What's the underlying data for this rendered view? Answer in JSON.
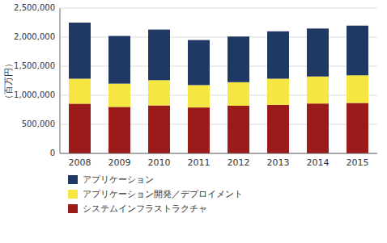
{
  "chart_data": {
    "type": "bar",
    "stacked": true,
    "y_label": "（百万円）",
    "categories": [
      "2008",
      "2009",
      "2010",
      "2011",
      "2012",
      "2013",
      "2014",
      "2015"
    ],
    "series": [
      {
        "name": "システムインフラストラクチャ",
        "color": "#9B1B1B",
        "values": [
          855000,
          800000,
          825000,
          790000,
          820000,
          835000,
          858000,
          868000
        ]
      },
      {
        "name": "アプリケーション開発／デプロイメント",
        "color": "#F5E642",
        "values": [
          430000,
          400000,
          435000,
          385000,
          405000,
          450000,
          465000,
          475000
        ]
      },
      {
        "name": "アプリケーション",
        "color": "#1F3864",
        "values": [
          965000,
          820000,
          870000,
          775000,
          785000,
          815000,
          825000,
          855000
        ]
      }
    ],
    "ylim": [
      0,
      2500000
    ],
    "yticks": [
      0,
      {
        "value": 500000,
        "label": "500,000"
      },
      {
        "value": 1000000,
        "label": "1,000,000"
      },
      {
        "value": 1500000,
        "label": "1,500,000"
      },
      {
        "value": 2000000,
        "label": "2,000,000"
      },
      {
        "value": 2500000,
        "label": "2,500,000"
      }
    ],
    "grid": true,
    "legend": "bottom"
  }
}
